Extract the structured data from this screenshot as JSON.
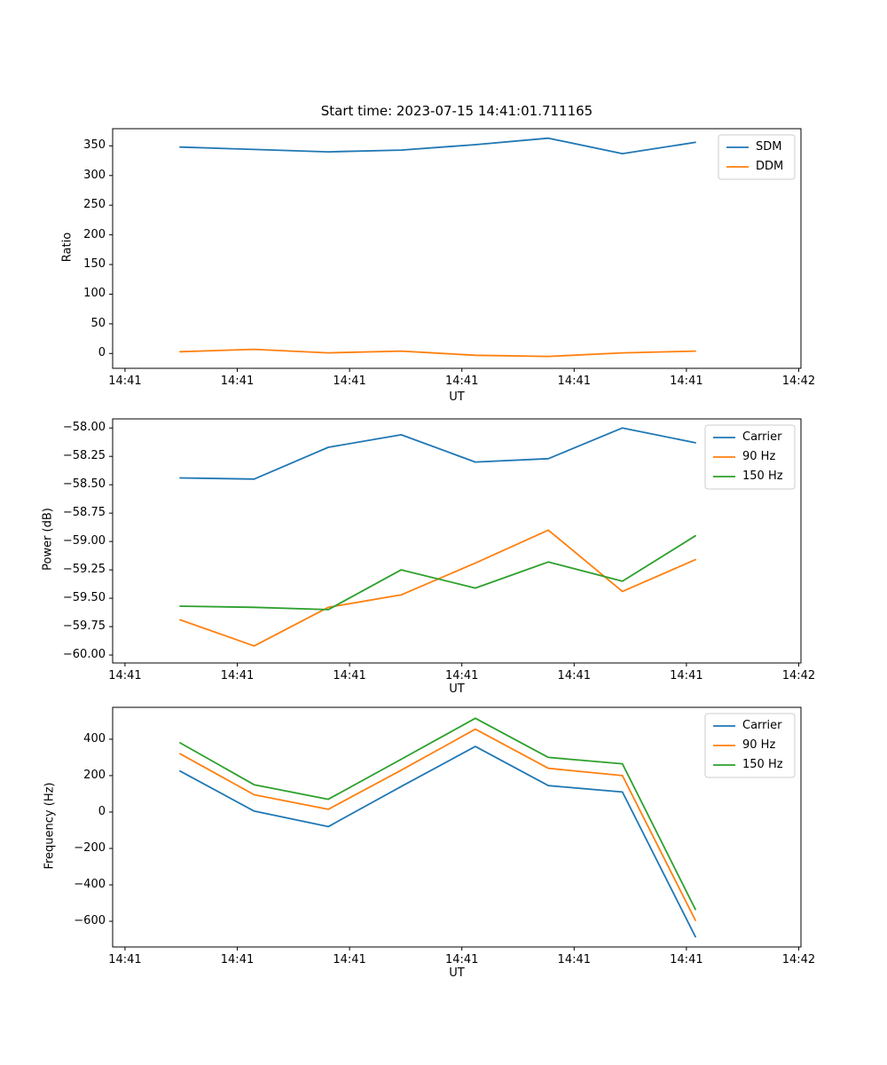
{
  "figure": {
    "background": "#ffffff",
    "text_color": "#000000"
  },
  "chart_data": [
    {
      "type": "line",
      "title": "Start time: 2023-07-15 14:41:01.711165",
      "xlabel": "UT",
      "ylabel": "Ratio",
      "grid": false,
      "legend_position": "upper right",
      "x_unit": "seconds after 14:41:00 UT",
      "x_seconds": [
        4.9,
        11.5,
        18.1,
        24.6,
        31.2,
        37.7,
        44.3,
        50.8
      ],
      "xlim_seconds": [
        -1.1,
        60.2
      ],
      "x_tick_seconds": [
        0,
        10,
        20,
        30,
        40,
        50,
        60
      ],
      "x_tick_labels": [
        "14:41",
        "14:41",
        "14:41",
        "14:41",
        "14:41",
        "14:41",
        "14:42"
      ],
      "ylim": [
        -25,
        379
      ],
      "y_ticks": [
        0,
        50,
        100,
        150,
        200,
        250,
        300,
        350
      ],
      "y_tick_labels": [
        "0",
        "50",
        "100",
        "150",
        "200",
        "250",
        "300",
        "350"
      ],
      "series": [
        {
          "name": "SDM",
          "color": "#1f77b4",
          "values": [
            348,
            344,
            340,
            343,
            352,
            363,
            337,
            356
          ]
        },
        {
          "name": "DDM",
          "color": "#ff7f0e",
          "values": [
            3,
            7,
            1,
            4,
            -3,
            -5,
            1,
            4
          ]
        }
      ]
    },
    {
      "type": "line",
      "xlabel": "UT",
      "ylabel": "Power (dB)",
      "grid": false,
      "legend_position": "upper right",
      "x_unit": "seconds after 14:41:00 UT",
      "x_seconds": [
        4.9,
        11.5,
        18.1,
        24.6,
        31.2,
        37.7,
        44.3,
        50.8
      ],
      "xlim_seconds": [
        -1.1,
        60.2
      ],
      "x_tick_seconds": [
        0,
        10,
        20,
        30,
        40,
        50,
        60
      ],
      "x_tick_labels": [
        "14:41",
        "14:41",
        "14:41",
        "14:41",
        "14:41",
        "14:41",
        "14:42"
      ],
      "ylim": [
        -60.07,
        -57.92
      ],
      "y_ticks": [
        -60.0,
        -59.75,
        -59.5,
        -59.25,
        -59.0,
        -58.75,
        -58.5,
        -58.25,
        -58.0
      ],
      "y_tick_labels": [
        "−60.00",
        "−59.75",
        "−59.50",
        "−59.25",
        "−59.00",
        "−58.75",
        "−58.50",
        "−58.25",
        "−58.00"
      ],
      "series": [
        {
          "name": "Carrier",
          "color": "#1f77b4",
          "values": [
            -58.44,
            -58.45,
            -58.17,
            -58.06,
            -58.3,
            -58.27,
            -58.0,
            -58.13
          ]
        },
        {
          "name": "90 Hz",
          "color": "#ff7f0e",
          "values": [
            -59.69,
            -59.92,
            -59.58,
            -59.47,
            -59.19,
            -58.9,
            -59.44,
            -59.16
          ]
        },
        {
          "name": "150 Hz",
          "color": "#2ca02c",
          "values": [
            -59.57,
            -59.58,
            -59.6,
            -59.25,
            -59.41,
            -59.18,
            -59.35,
            -58.95
          ]
        }
      ]
    },
    {
      "type": "line",
      "xlabel": "UT",
      "ylabel": "Frequency (Hz)",
      "grid": false,
      "legend_position": "upper right",
      "x_unit": "seconds after 14:41:00 UT",
      "x_seconds": [
        4.9,
        11.5,
        18.1,
        24.6,
        31.2,
        37.7,
        44.3,
        50.8
      ],
      "xlim_seconds": [
        -1.1,
        60.2
      ],
      "x_tick_seconds": [
        0,
        10,
        20,
        30,
        40,
        50,
        60
      ],
      "x_tick_labels": [
        "14:41",
        "14:41",
        "14:41",
        "14:41",
        "14:41",
        "14:41",
        "14:42"
      ],
      "ylim": [
        -741,
        575
      ],
      "y_ticks": [
        -600,
        -400,
        -200,
        0,
        200,
        400
      ],
      "y_tick_labels": [
        "−600",
        "−400",
        "−200",
        "0",
        "200",
        "400"
      ],
      "series": [
        {
          "name": "Carrier",
          "color": "#1f77b4",
          "values": [
            225,
            5,
            -80,
            140,
            360,
            145,
            110,
            -685
          ]
        },
        {
          "name": "90 Hz",
          "color": "#ff7f0e",
          "values": [
            320,
            95,
            15,
            230,
            455,
            240,
            200,
            -595
          ]
        },
        {
          "name": "150 Hz",
          "color": "#2ca02c",
          "values": [
            380,
            150,
            70,
            290,
            515,
            300,
            265,
            -535
          ]
        }
      ]
    }
  ]
}
